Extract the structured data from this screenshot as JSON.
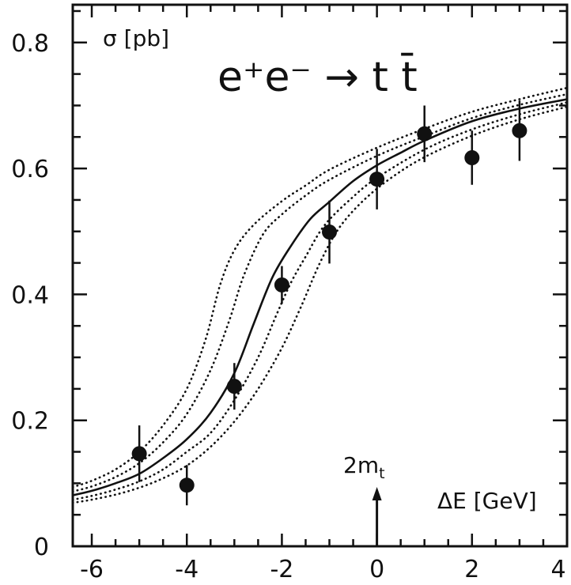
{
  "chart_data": {
    "type": "scatter",
    "title": "e⁺e⁻ → t t̄",
    "ylabel": "σ [pb]",
    "xlabel": "ΔE [GeV]",
    "xlim": [
      -6.4,
      4
    ],
    "ylim": [
      0,
      0.86
    ],
    "x_ticks": [
      -6,
      -4,
      -2,
      0,
      2,
      4
    ],
    "y_ticks": [
      0,
      0.2,
      0.4,
      0.6,
      0.8
    ],
    "x_tick_labels": [
      "-6",
      "-4",
      "-2",
      "0",
      "2",
      "4"
    ],
    "y_tick_labels": [
      "0",
      "0.2",
      "0.4",
      "0.6",
      "0.8"
    ],
    "marker": {
      "label": "2m_t",
      "label_main": "2m",
      "label_sub": "t",
      "x": 0
    },
    "series": [
      {
        "style": "points-with-errors",
        "points": [
          {
            "x": -5,
            "y": 0.147,
            "err": 0.045
          },
          {
            "x": -4,
            "y": 0.097,
            "err": 0.032
          },
          {
            "x": -3,
            "y": 0.254,
            "err": 0.037
          },
          {
            "x": -2,
            "y": 0.415,
            "err": 0.03
          },
          {
            "x": -1,
            "y": 0.499,
            "err": 0.05
          },
          {
            "x": 0,
            "y": 0.583,
            "err": 0.048
          },
          {
            "x": 1,
            "y": 0.655,
            "err": 0.045
          },
          {
            "x": 2,
            "y": 0.617,
            "err": 0.043
          },
          {
            "x": 3,
            "y": 0.66,
            "err": 0.048
          }
        ]
      },
      {
        "style": "solid",
        "points": [
          [
            -6.4,
            0.081
          ],
          [
            -6,
            0.088
          ],
          [
            -5.5,
            0.1
          ],
          [
            -5,
            0.115
          ],
          [
            -4.5,
            0.14
          ],
          [
            -4,
            0.17
          ],
          [
            -3.5,
            0.212
          ],
          [
            -3,
            0.275
          ],
          [
            -2.6,
            0.352
          ],
          [
            -2.2,
            0.427
          ],
          [
            -1.8,
            0.478
          ],
          [
            -1.4,
            0.52
          ],
          [
            -1,
            0.547
          ],
          [
            -0.5,
            0.58
          ],
          [
            0,
            0.605
          ],
          [
            0.5,
            0.625
          ],
          [
            1,
            0.644
          ],
          [
            2,
            0.675
          ],
          [
            3,
            0.695
          ],
          [
            4,
            0.71
          ]
        ]
      },
      {
        "style": "dotted",
        "points": [
          [
            -6.4,
            0.094
          ],
          [
            -6,
            0.104
          ],
          [
            -5.5,
            0.122
          ],
          [
            -5,
            0.15
          ],
          [
            -4.5,
            0.192
          ],
          [
            -4,
            0.25
          ],
          [
            -3.6,
            0.33
          ],
          [
            -3.3,
            0.415
          ],
          [
            -3,
            0.47
          ],
          [
            -2.6,
            0.51
          ],
          [
            -2,
            0.548
          ],
          [
            -1.5,
            0.573
          ],
          [
            -1,
            0.598
          ],
          [
            0,
            0.633
          ],
          [
            1,
            0.663
          ],
          [
            2,
            0.69
          ],
          [
            3,
            0.71
          ],
          [
            4,
            0.728
          ]
        ]
      },
      {
        "style": "dotted",
        "points": [
          [
            -6.4,
            0.087
          ],
          [
            -6,
            0.095
          ],
          [
            -5.5,
            0.11
          ],
          [
            -5,
            0.132
          ],
          [
            -4.5,
            0.165
          ],
          [
            -4,
            0.21
          ],
          [
            -3.5,
            0.28
          ],
          [
            -3.1,
            0.36
          ],
          [
            -2.8,
            0.43
          ],
          [
            -2.4,
            0.495
          ],
          [
            -2,
            0.527
          ],
          [
            -1.5,
            0.557
          ],
          [
            -1,
            0.582
          ],
          [
            0,
            0.62
          ],
          [
            1,
            0.651
          ],
          [
            2,
            0.68
          ],
          [
            3,
            0.701
          ],
          [
            4,
            0.718
          ]
        ]
      },
      {
        "style": "dotted",
        "points": [
          [
            -6.4,
            0.074
          ],
          [
            -6,
            0.08
          ],
          [
            -5.5,
            0.09
          ],
          [
            -5,
            0.103
          ],
          [
            -4.5,
            0.122
          ],
          [
            -4,
            0.15
          ],
          [
            -3.5,
            0.18
          ],
          [
            -3,
            0.232
          ],
          [
            -2.5,
            0.3
          ],
          [
            -2.1,
            0.37
          ],
          [
            -1.8,
            0.42
          ],
          [
            -1.5,
            0.46
          ],
          [
            -1.1,
            0.51
          ],
          [
            -0.5,
            0.555
          ],
          [
            0,
            0.585
          ],
          [
            1,
            0.63
          ],
          [
            2,
            0.662
          ],
          [
            3,
            0.686
          ],
          [
            4,
            0.705
          ]
        ]
      },
      {
        "style": "dotted",
        "points": [
          [
            -6.4,
            0.069
          ],
          [
            -6,
            0.074
          ],
          [
            -5.5,
            0.082
          ],
          [
            -5,
            0.093
          ],
          [
            -4.5,
            0.108
          ],
          [
            -4,
            0.128
          ],
          [
            -3.5,
            0.158
          ],
          [
            -3,
            0.198
          ],
          [
            -2.5,
            0.25
          ],
          [
            -2,
            0.315
          ],
          [
            -1.6,
            0.38
          ],
          [
            -1.2,
            0.45
          ],
          [
            -0.8,
            0.505
          ],
          [
            -0.3,
            0.548
          ],
          [
            0.3,
            0.585
          ],
          [
            1,
            0.618
          ],
          [
            2,
            0.652
          ],
          [
            3,
            0.678
          ],
          [
            4,
            0.698
          ]
        ]
      }
    ]
  }
}
